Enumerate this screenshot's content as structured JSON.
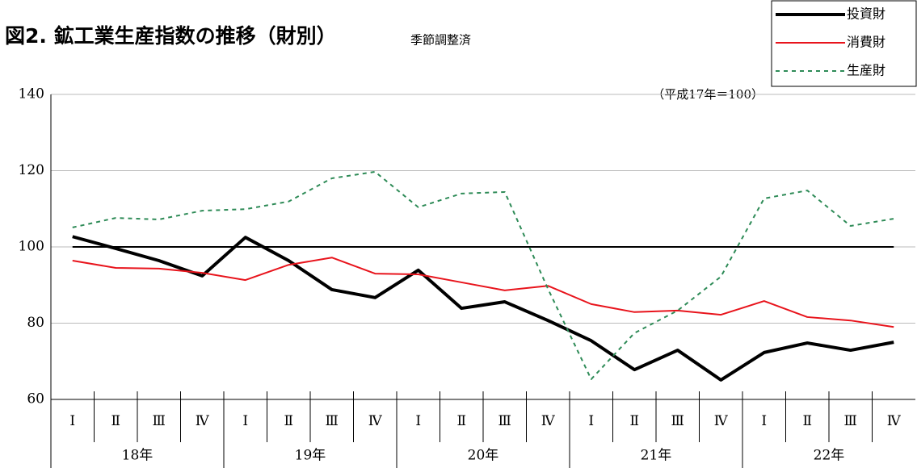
{
  "chart_data": {
    "type": "line",
    "title": "図2. 鉱工業生産指数の推移（財別）",
    "subtitle": "季節調整済",
    "note": "（平成17年＝100）",
    "categories": [
      "Ⅰ",
      "Ⅱ",
      "Ⅲ",
      "Ⅳ",
      "Ⅰ",
      "Ⅱ",
      "Ⅲ",
      "Ⅳ",
      "Ⅰ",
      "Ⅱ",
      "Ⅲ",
      "Ⅳ",
      "Ⅰ",
      "Ⅱ",
      "Ⅲ",
      "Ⅳ",
      "Ⅰ",
      "Ⅱ",
      "Ⅲ",
      "Ⅳ"
    ],
    "year_groups": [
      "18年",
      "19年",
      "20年",
      "21年",
      "22年"
    ],
    "series": [
      {
        "name": "投資財",
        "color": "#000000",
        "width": 4,
        "dashed": false,
        "values": [
          102.7,
          99.6,
          96.4,
          92.4,
          102.5,
          96.4,
          88.8,
          86.7,
          93.9,
          83.9,
          85.6,
          80.7,
          75.4,
          67.8,
          72.9,
          65.1,
          72.3,
          74.8,
          72.9,
          75.0
        ]
      },
      {
        "name": "消費財",
        "color": "#e8141c",
        "width": 2,
        "dashed": false,
        "values": [
          96.4,
          94.5,
          94.3,
          93.2,
          91.3,
          95.3,
          97.2,
          93.0,
          92.8,
          90.7,
          88.6,
          89.8,
          85.0,
          82.9,
          83.3,
          82.2,
          85.8,
          81.6,
          80.7,
          79.0
        ]
      },
      {
        "name": "生産財",
        "color": "#2e8b57",
        "width": 2,
        "dashed": true,
        "values": [
          105.1,
          107.6,
          107.2,
          109.5,
          109.9,
          111.9,
          118.0,
          119.7,
          110.4,
          114.0,
          114.4,
          89.0,
          65.3,
          77.4,
          83.3,
          92.2,
          112.7,
          114.8,
          105.5,
          107.4
        ]
      }
    ],
    "reference_line": 100,
    "ylim": [
      60,
      140
    ],
    "yticks": [
      60,
      80,
      100,
      120,
      140
    ],
    "grid": true,
    "legend": "top-right"
  }
}
